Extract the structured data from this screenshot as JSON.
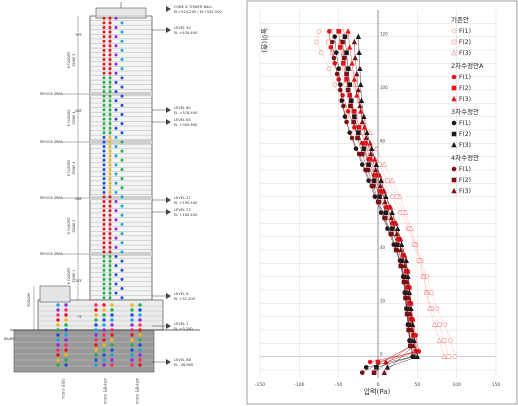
{
  "building": {
    "roof_label": "CUBE & TOWER BALL",
    "roof_el": "EL+524.200 / EL+541.500",
    "zone_labels": [
      "ZONE 5",
      "ZONE 4",
      "ZONE 3",
      "ZONE 2",
      "ZONE 1"
    ],
    "zone_left_text": [
      "6 FLOORS",
      "6 FLOORS",
      "6 FLOORS",
      "6 FLOORS",
      "6 FLOORS"
    ],
    "refuge_labels": [
      "REFUGE AREA",
      "REFUGE AREA",
      "REFUGE AREA",
      "REFUGE AREA"
    ],
    "floor_markers": [
      "97F",
      "84F",
      "63F",
      "37F",
      "7F"
    ],
    "level_markers": [
      {
        "name": "LEVEL 93",
        "el": "EL +434.400"
      },
      {
        "name": "LEVEL 80",
        "el": "EL +378.400"
      },
      {
        "name": "LEVEL 63",
        "el": "EL +300.800"
      },
      {
        "name": "LEVEL 27",
        "el": "EL +195.400"
      },
      {
        "name": "LEVEL 23",
        "el": "EL +180.400"
      },
      {
        "name": "LEVEL 6",
        "el": "EL +31.200"
      },
      {
        "name": "LEVEL 1",
        "el": "EL +3.200"
      },
      {
        "name": "LEVEL B6",
        "el": "EL -36.800"
      }
    ],
    "podium_label": "PODIUM",
    "bottom_left": "B6/B5",
    "column_legend": [
      "기존안 S/SCA",
      "2차수정안 S/SCA",
      "4차수정안 S/SCA"
    ],
    "dot_colors": [
      "#ff2a6d",
      "#e8141c",
      "#f3b521",
      "#22b14c",
      "#1f4fd6",
      "#19a8d8",
      "#8a2be2"
    ]
  },
  "chart_data": {
    "type": "scatter",
    "title": "",
    "ylabel": "높이(층)",
    "xlabel": "압력(Pa)",
    "xlim": [
      -150,
      150
    ],
    "ylim": [
      -8,
      130
    ],
    "xticks": [
      -150,
      -100,
      -50,
      0,
      50,
      100,
      150
    ],
    "xtick_labels": [
      "-150",
      "-100",
      "-50",
      "0",
      "50",
      "100",
      "150"
    ],
    "yticks": [
      0,
      20,
      40,
      60,
      80,
      100,
      120
    ],
    "ytick_labels": [
      "0",
      "20",
      "40",
      "60",
      "80",
      "100",
      "120"
    ],
    "grid": true,
    "legend_position": "right",
    "legend": [
      {
        "group": "기존안",
        "items": [
          "F(1)",
          "F(2)",
          "F(3)"
        ],
        "markers": [
          "circle-open",
          "square-open",
          "triangle-open"
        ],
        "color": "#ff8a8a"
      },
      {
        "group": "2차수정안A",
        "items": [
          "F(1)",
          "F(2)",
          "F(3)"
        ],
        "markers": [
          "circle",
          "square",
          "triangle"
        ],
        "color": "#e8141c"
      },
      {
        "group": "3차수정안",
        "items": [
          "F(1)",
          "F(2)",
          "F(3)"
        ],
        "markers": [
          "circle",
          "square",
          "triangle"
        ],
        "color": "#1a1a1a"
      },
      {
        "group": "4차수정안",
        "items": [
          "F(1)",
          "F(2)",
          "F(3)"
        ],
        "markers": [
          "circle",
          "square",
          "triangle"
        ],
        "color": "#7a0f12"
      }
    ],
    "series": [
      {
        "name": "기존안 F(1)",
        "marker": "circle-open",
        "color": "#ff8a8a",
        "points": [
          [
            -75,
            122
          ],
          [
            -78,
            118
          ],
          [
            -72,
            114
          ],
          [
            -62,
            108
          ],
          [
            -55,
            102
          ],
          [
            -48,
            96
          ],
          [
            -40,
            90
          ],
          [
            -30,
            84
          ],
          [
            -18,
            78
          ],
          [
            -5,
            72
          ],
          [
            5,
            66
          ],
          [
            18,
            60
          ],
          [
            28,
            54
          ],
          [
            38,
            48
          ],
          [
            48,
            42
          ],
          [
            55,
            36
          ],
          [
            62,
            30
          ],
          [
            68,
            24
          ],
          [
            75,
            18
          ],
          [
            85,
            12
          ],
          [
            92,
            6
          ],
          [
            98,
            0
          ]
        ]
      },
      {
        "name": "기존안 F(2)",
        "marker": "square-open",
        "color": "#ff8a8a",
        "points": [
          [
            -60,
            122
          ],
          [
            -63,
            118
          ],
          [
            -58,
            114
          ],
          [
            -48,
            108
          ],
          [
            -42,
            102
          ],
          [
            -35,
            96
          ],
          [
            -28,
            90
          ],
          [
            -20,
            84
          ],
          [
            -10,
            78
          ],
          [
            2,
            72
          ],
          [
            12,
            66
          ],
          [
            24,
            60
          ],
          [
            32,
            54
          ],
          [
            40,
            48
          ],
          [
            46,
            42
          ],
          [
            52,
            36
          ],
          [
            58,
            30
          ],
          [
            62,
            24
          ],
          [
            68,
            18
          ],
          [
            78,
            12
          ],
          [
            84,
            6
          ],
          [
            90,
            0
          ]
        ]
      },
      {
        "name": "기존안 F(3)",
        "marker": "triangle-open",
        "color": "#ff8a8a",
        "points": [
          [
            -45,
            122
          ],
          [
            -48,
            118
          ],
          [
            -44,
            114
          ],
          [
            -36,
            108
          ],
          [
            -30,
            102
          ],
          [
            -24,
            96
          ],
          [
            -18,
            90
          ],
          [
            -10,
            84
          ],
          [
            -2,
            78
          ],
          [
            8,
            72
          ],
          [
            18,
            66
          ],
          [
            28,
            60
          ],
          [
            35,
            54
          ],
          [
            42,
            48
          ],
          [
            48,
            42
          ],
          [
            54,
            36
          ],
          [
            58,
            30
          ],
          [
            62,
            24
          ],
          [
            66,
            18
          ],
          [
            72,
            12
          ],
          [
            78,
            6
          ],
          [
            84,
            0
          ]
        ]
      },
      {
        "name": "2차수정안A F(1)",
        "marker": "circle",
        "color": "#e8141c",
        "points": [
          [
            -62,
            122
          ],
          [
            -60,
            116
          ],
          [
            -55,
            110
          ],
          [
            -50,
            104
          ],
          [
            -45,
            98
          ],
          [
            -38,
            92
          ],
          [
            -30,
            86
          ],
          [
            -20,
            80
          ],
          [
            -12,
            74
          ],
          [
            -5,
            68
          ],
          [
            2,
            62
          ],
          [
            10,
            56
          ],
          [
            18,
            50
          ],
          [
            25,
            44
          ],
          [
            32,
            38
          ],
          [
            38,
            32
          ],
          [
            40,
            26
          ],
          [
            42,
            20
          ],
          [
            44,
            14
          ],
          [
            48,
            8
          ],
          [
            52,
            2
          ],
          [
            -10,
            -2
          ]
        ]
      },
      {
        "name": "2차수정안A F(2)",
        "marker": "square",
        "color": "#e8141c",
        "points": [
          [
            -50,
            122
          ],
          [
            -48,
            116
          ],
          [
            -44,
            110
          ],
          [
            -40,
            104
          ],
          [
            -36,
            98
          ],
          [
            -30,
            92
          ],
          [
            -24,
            86
          ],
          [
            -16,
            80
          ],
          [
            -10,
            74
          ],
          [
            -3,
            68
          ],
          [
            4,
            62
          ],
          [
            12,
            56
          ],
          [
            20,
            50
          ],
          [
            26,
            44
          ],
          [
            32,
            38
          ],
          [
            36,
            32
          ],
          [
            38,
            26
          ],
          [
            40,
            20
          ],
          [
            42,
            14
          ],
          [
            45,
            8
          ],
          [
            48,
            2
          ],
          [
            0,
            -2
          ]
        ]
      },
      {
        "name": "2차수정안A F(3)",
        "marker": "triangle",
        "color": "#e8141c",
        "points": [
          [
            -38,
            122
          ],
          [
            -36,
            116
          ],
          [
            -33,
            110
          ],
          [
            -30,
            104
          ],
          [
            -27,
            98
          ],
          [
            -22,
            92
          ],
          [
            -17,
            86
          ],
          [
            -10,
            80
          ],
          [
            -4,
            74
          ],
          [
            2,
            68
          ],
          [
            8,
            62
          ],
          [
            16,
            56
          ],
          [
            23,
            50
          ],
          [
            29,
            44
          ],
          [
            34,
            38
          ],
          [
            38,
            32
          ],
          [
            40,
            26
          ],
          [
            42,
            20
          ],
          [
            44,
            14
          ],
          [
            46,
            8
          ],
          [
            50,
            2
          ],
          [
            10,
            -2
          ]
        ]
      },
      {
        "name": "3차수정안 F(1)",
        "marker": "circle",
        "color": "#1a1a1a",
        "points": [
          [
            -55,
            120
          ],
          [
            -53,
            114
          ],
          [
            -50,
            108
          ],
          [
            -48,
            102
          ],
          [
            -46,
            96
          ],
          [
            -42,
            90
          ],
          [
            -36,
            84
          ],
          [
            -28,
            78
          ],
          [
            -20,
            72
          ],
          [
            -12,
            66
          ],
          [
            -4,
            60
          ],
          [
            4,
            54
          ],
          [
            12,
            48
          ],
          [
            20,
            42
          ],
          [
            28,
            36
          ],
          [
            32,
            30
          ],
          [
            34,
            24
          ],
          [
            36,
            18
          ],
          [
            38,
            12
          ],
          [
            40,
            6
          ],
          [
            44,
            0
          ],
          [
            -15,
            -4
          ]
        ]
      },
      {
        "name": "3차수정안 F(2)",
        "marker": "square",
        "color": "#1a1a1a",
        "points": [
          [
            -42,
            120
          ],
          [
            -40,
            114
          ],
          [
            -38,
            108
          ],
          [
            -36,
            102
          ],
          [
            -34,
            96
          ],
          [
            -30,
            90
          ],
          [
            -25,
            84
          ],
          [
            -18,
            78
          ],
          [
            -12,
            72
          ],
          [
            -5,
            66
          ],
          [
            2,
            60
          ],
          [
            10,
            54
          ],
          [
            18,
            48
          ],
          [
            24,
            42
          ],
          [
            30,
            36
          ],
          [
            33,
            30
          ],
          [
            35,
            24
          ],
          [
            37,
            18
          ],
          [
            39,
            12
          ],
          [
            41,
            6
          ],
          [
            45,
            0
          ],
          [
            -2,
            -4
          ]
        ]
      },
      {
        "name": "3차수정안 F(3)",
        "marker": "triangle",
        "color": "#1a1a1a",
        "points": [
          [
            -25,
            120
          ],
          [
            -24,
            114
          ],
          [
            -23,
            108
          ],
          [
            -22,
            102
          ],
          [
            -21,
            96
          ],
          [
            -18,
            90
          ],
          [
            -14,
            84
          ],
          [
            -8,
            78
          ],
          [
            -2,
            72
          ],
          [
            4,
            66
          ],
          [
            10,
            60
          ],
          [
            18,
            54
          ],
          [
            25,
            48
          ],
          [
            30,
            42
          ],
          [
            36,
            36
          ],
          [
            38,
            30
          ],
          [
            40,
            24
          ],
          [
            42,
            18
          ],
          [
            44,
            12
          ],
          [
            46,
            6
          ],
          [
            50,
            0
          ],
          [
            12,
            -4
          ]
        ]
      },
      {
        "name": "4차수정안 F(1)",
        "marker": "circle",
        "color": "#7a0f12",
        "points": [
          [
            -58,
            118
          ],
          [
            -56,
            112
          ],
          [
            -52,
            106
          ],
          [
            -48,
            100
          ],
          [
            -44,
            94
          ],
          [
            -40,
            88
          ],
          [
            -33,
            82
          ],
          [
            -24,
            76
          ],
          [
            -16,
            70
          ],
          [
            -8,
            64
          ],
          [
            0,
            58
          ],
          [
            8,
            52
          ],
          [
            16,
            46
          ],
          [
            24,
            40
          ],
          [
            30,
            34
          ],
          [
            34,
            28
          ],
          [
            36,
            22
          ],
          [
            38,
            16
          ],
          [
            40,
            10
          ],
          [
            42,
            4
          ],
          [
            -20,
            -6
          ]
        ]
      },
      {
        "name": "4차수정안 F(2)",
        "marker": "square",
        "color": "#7a0f12",
        "points": [
          [
            -45,
            118
          ],
          [
            -43,
            112
          ],
          [
            -40,
            106
          ],
          [
            -38,
            100
          ],
          [
            -35,
            94
          ],
          [
            -31,
            88
          ],
          [
            -26,
            82
          ],
          [
            -20,
            76
          ],
          [
            -13,
            70
          ],
          [
            -6,
            64
          ],
          [
            1,
            58
          ],
          [
            9,
            52
          ],
          [
            17,
            46
          ],
          [
            23,
            40
          ],
          [
            29,
            34
          ],
          [
            33,
            28
          ],
          [
            35,
            22
          ],
          [
            37,
            16
          ],
          [
            39,
            10
          ],
          [
            41,
            4
          ],
          [
            -5,
            -6
          ]
        ]
      },
      {
        "name": "4차수정안 F(3)",
        "marker": "triangle",
        "color": "#7a0f12",
        "points": [
          [
            -30,
            118
          ],
          [
            -29,
            112
          ],
          [
            -27,
            106
          ],
          [
            -25,
            100
          ],
          [
            -23,
            94
          ],
          [
            -20,
            88
          ],
          [
            -15,
            82
          ],
          [
            -9,
            76
          ],
          [
            -3,
            70
          ],
          [
            3,
            64
          ],
          [
            9,
            58
          ],
          [
            17,
            52
          ],
          [
            24,
            46
          ],
          [
            29,
            40
          ],
          [
            34,
            34
          ],
          [
            37,
            28
          ],
          [
            39,
            22
          ],
          [
            41,
            16
          ],
          [
            43,
            10
          ],
          [
            45,
            4
          ],
          [
            8,
            -6
          ]
        ]
      }
    ]
  }
}
